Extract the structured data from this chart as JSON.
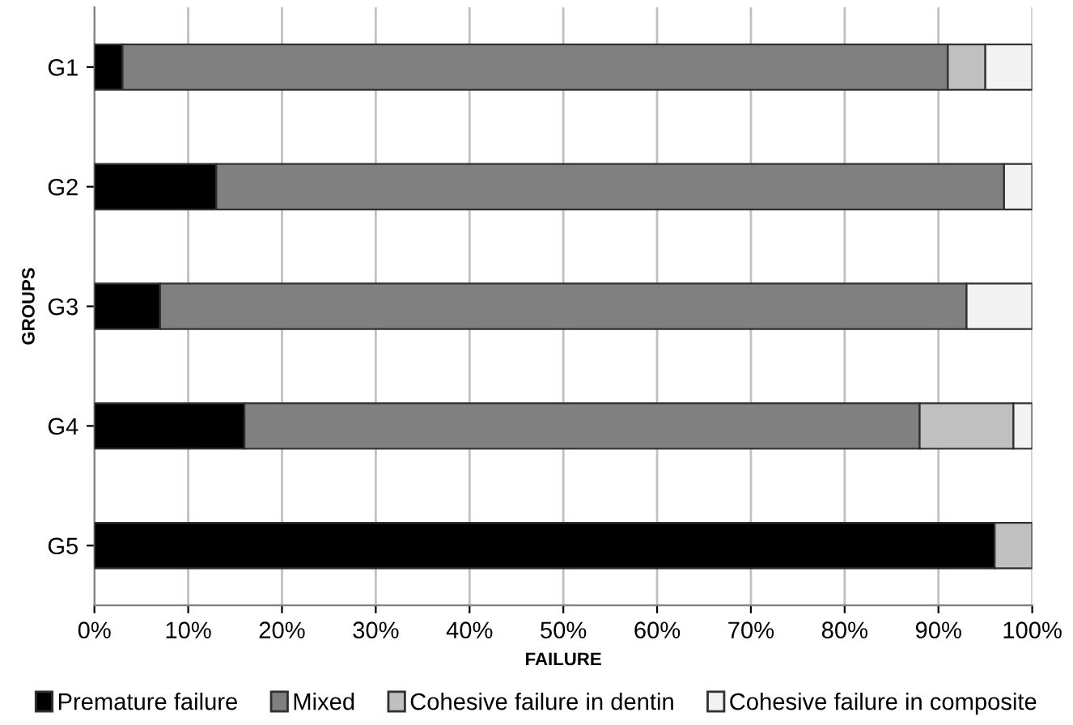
{
  "chart_data": {
    "type": "bar",
    "orientation": "horizontal",
    "stacked": true,
    "xlabel": "FAILURE",
    "ylabel": "GROUPS",
    "categories": [
      "G1",
      "G2",
      "G3",
      "G4",
      "G5"
    ],
    "series": [
      {
        "name": "Premature failure",
        "color": "#000000",
        "values": [
          3,
          13,
          7,
          16,
          96
        ]
      },
      {
        "name": "Mixed",
        "color": "#808080",
        "values": [
          88,
          84,
          86,
          72,
          0
        ]
      },
      {
        "name": "Cohesive failure in dentin",
        "color": "#c0c0c0",
        "values": [
          4,
          0,
          0,
          10,
          4
        ]
      },
      {
        "name": "Cohesive failure in composite",
        "color": "#f2f2f2",
        "values": [
          5,
          3,
          7,
          2,
          0
        ]
      }
    ],
    "xlim": [
      0,
      100
    ],
    "xticks": [
      {
        "value": 0,
        "label": "0%"
      },
      {
        "value": 10,
        "label": "10%"
      },
      {
        "value": 20,
        "label": "20%"
      },
      {
        "value": 30,
        "label": "30%"
      },
      {
        "value": 40,
        "label": "40%"
      },
      {
        "value": 50,
        "label": "50%"
      },
      {
        "value": 60,
        "label": "60%"
      },
      {
        "value": 70,
        "label": "70%"
      },
      {
        "value": 80,
        "label": "80%"
      },
      {
        "value": 90,
        "label": "90%"
      },
      {
        "value": 100,
        "label": "100%"
      }
    ],
    "grid": "x",
    "legend": "bottom"
  }
}
